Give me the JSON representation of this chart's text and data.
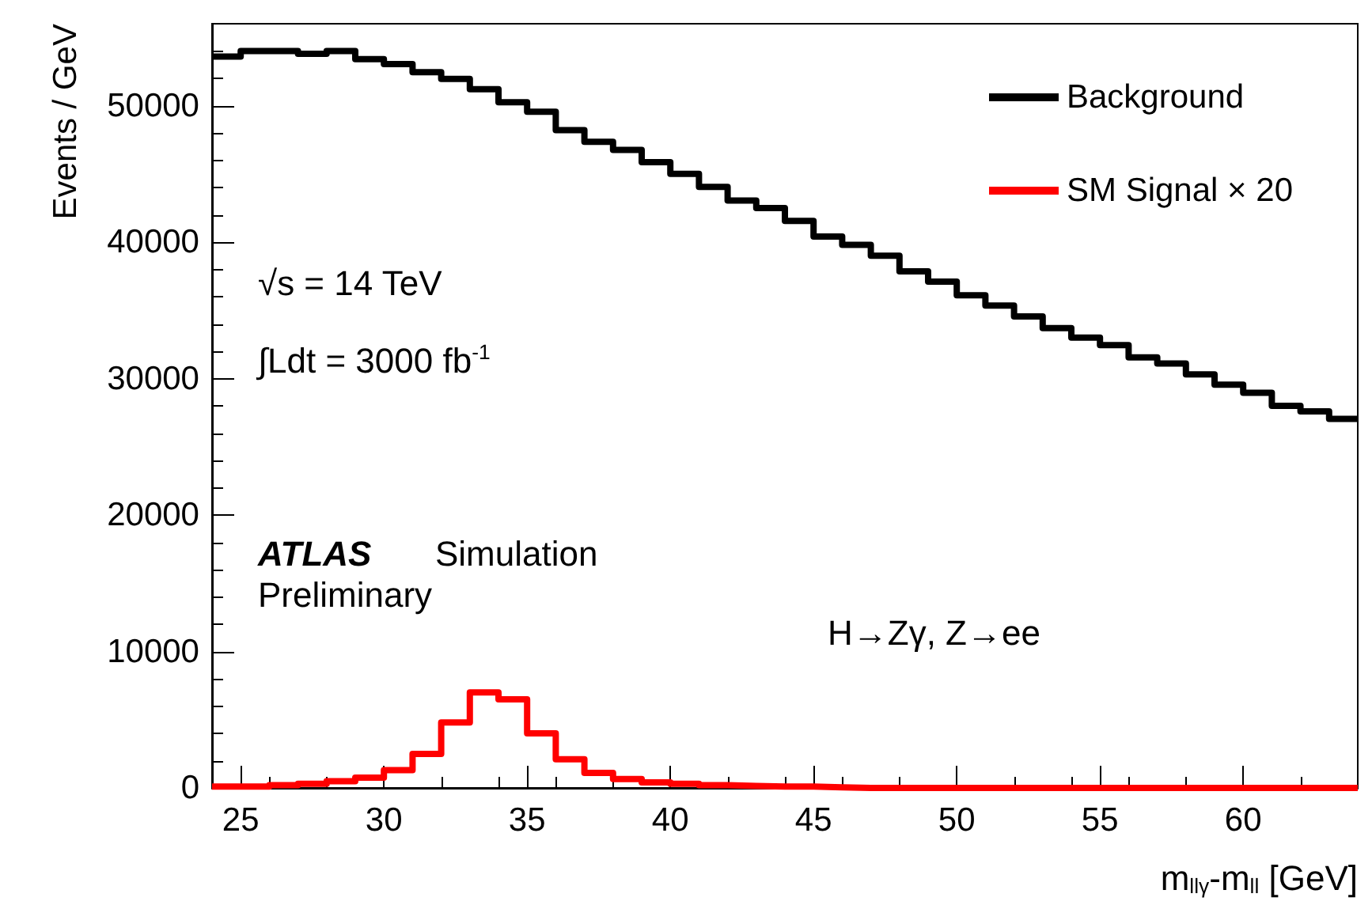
{
  "chart_data": {
    "type": "histogram",
    "xlabel": "m$_{llγ}$-m$_{ll}$ [GeV]",
    "ylabel": "Events / GeV",
    "bins": [
      24,
      25,
      26,
      27,
      28,
      29,
      30,
      31,
      32,
      33,
      34,
      35,
      36,
      37,
      38,
      39,
      40,
      41,
      42,
      43,
      44,
      45,
      46,
      47,
      48,
      49,
      50,
      51,
      52,
      53,
      54,
      55,
      56,
      57,
      58,
      59,
      60,
      61,
      62,
      63,
      64
    ],
    "series": [
      {
        "name": "Background",
        "color": "#000000",
        "values": [
          53600,
          54000,
          54000,
          53800,
          54000,
          53400,
          53050,
          52450,
          51950,
          51200,
          50250,
          49550,
          48200,
          47350,
          46750,
          45850,
          45000,
          44050,
          43050,
          42500,
          41550,
          40400,
          39800,
          39000,
          37850,
          37100,
          36100,
          35350,
          34550,
          33700,
          33000,
          32450,
          31550,
          31100,
          30300,
          29550,
          28950,
          28000,
          27600,
          27050
        ]
      },
      {
        "name": "SM Signal × 20",
        "color": "#ff0000",
        "values": [
          100,
          100,
          200,
          300,
          500,
          750,
          1300,
          2500,
          4800,
          7000,
          6500,
          4000,
          2100,
          1100,
          650,
          400,
          300,
          200,
          150,
          100,
          100,
          50,
          0,
          0,
          0,
          0,
          0,
          0,
          0,
          0,
          0,
          0,
          0,
          0,
          0,
          0,
          0,
          0,
          0,
          0
        ]
      }
    ],
    "xlim": [
      24,
      64
    ],
    "xticks": [
      25,
      30,
      35,
      40,
      45,
      50,
      55,
      60
    ],
    "ylim": [
      0,
      56000
    ],
    "yticks": [
      0,
      10000,
      20000,
      30000,
      40000,
      50000
    ],
    "legend": "top right",
    "grid": false,
    "annotations": [
      "√s = 14 TeV",
      "∫Ldt = 3000 fb$^{-1}$",
      "ATLAS",
      "Simulation",
      "Preliminary",
      "H→Zγ, Z→ee"
    ]
  }
}
